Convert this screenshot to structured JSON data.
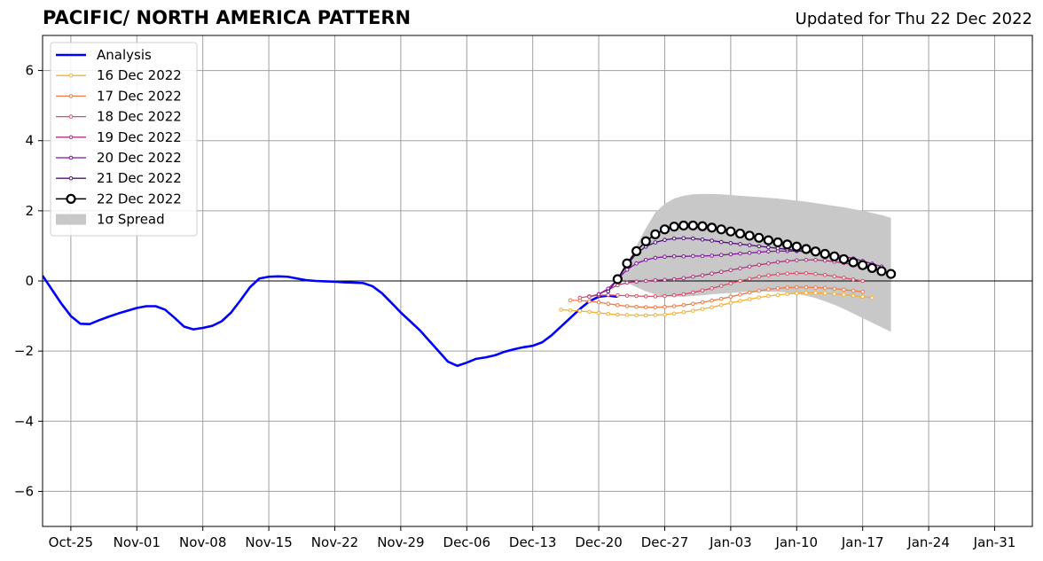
{
  "chart_data": {
    "type": "line",
    "title": "PACIFIC/ NORTH AMERICA PATTERN",
    "subtitle": "Updated for Thu 22 Dec 2022",
    "xlim": [
      "2022-10-22",
      "2023-02-04"
    ],
    "ylim": [
      -7,
      7
    ],
    "x_ticks": [
      {
        "date": "2022-10-25",
        "label": "Oct-25"
      },
      {
        "date": "2022-11-01",
        "label": "Nov-01"
      },
      {
        "date": "2022-11-08",
        "label": "Nov-08"
      },
      {
        "date": "2022-11-15",
        "label": "Nov-15"
      },
      {
        "date": "2022-11-22",
        "label": "Nov-22"
      },
      {
        "date": "2022-11-29",
        "label": "Nov-29"
      },
      {
        "date": "2022-12-06",
        "label": "Dec-06"
      },
      {
        "date": "2022-12-13",
        "label": "Dec-13"
      },
      {
        "date": "2022-12-20",
        "label": "Dec-20"
      },
      {
        "date": "2022-12-27",
        "label": "Dec-27"
      },
      {
        "date": "2023-01-03",
        "label": "Jan-03"
      },
      {
        "date": "2023-01-10",
        "label": "Jan-10"
      },
      {
        "date": "2023-01-17",
        "label": "Jan-17"
      },
      {
        "date": "2023-01-24",
        "label": "Jan-24"
      },
      {
        "date": "2023-01-31",
        "label": "Jan-31"
      }
    ],
    "y_ticks": [
      {
        "value": -6,
        "label": "−6"
      },
      {
        "value": -4,
        "label": "−4"
      },
      {
        "value": -2,
        "label": "−2"
      },
      {
        "value": 0,
        "label": "0"
      },
      {
        "value": 2,
        "label": "2"
      },
      {
        "value": 4,
        "label": "4"
      },
      {
        "value": 6,
        "label": "6"
      }
    ],
    "grid": true,
    "legend_position": "top-left",
    "analysis": {
      "name": "Analysis",
      "color": "#0000ff",
      "start": "2022-10-22",
      "values": [
        0.15,
        -0.25,
        -0.65,
        -1.0,
        -1.22,
        -1.23,
        -1.12,
        -1.02,
        -0.93,
        -0.85,
        -0.77,
        -0.72,
        -0.72,
        -0.82,
        -1.05,
        -1.3,
        -1.38,
        -1.34,
        -1.28,
        -1.15,
        -0.9,
        -0.55,
        -0.18,
        0.07,
        0.12,
        0.13,
        0.12,
        0.07,
        0.02,
        0.0,
        -0.01,
        -0.02,
        -0.04,
        -0.05,
        -0.06,
        -0.15,
        -0.35,
        -0.62,
        -0.9,
        -1.15,
        -1.4,
        -1.7,
        -2.0,
        -2.3,
        -2.42,
        -2.33,
        -2.22,
        -2.18,
        -2.12,
        -2.02,
        -1.95,
        -1.89,
        -1.85,
        -1.75,
        -1.55,
        -1.3,
        -1.05,
        -0.8,
        -0.58,
        -0.45,
        -0.42,
        -0.45
      ]
    },
    "forecasts": [
      {
        "name": "16 Dec 2022",
        "color": "#f5b031",
        "start": "2022-12-16",
        "values": [
          -0.82,
          -0.84,
          -0.86,
          -0.88,
          -0.91,
          -0.94,
          -0.96,
          -0.97,
          -0.98,
          -0.98,
          -0.97,
          -0.96,
          -0.93,
          -0.89,
          -0.85,
          -0.8,
          -0.75,
          -0.69,
          -0.63,
          -0.57,
          -0.52,
          -0.47,
          -0.43,
          -0.4,
          -0.37,
          -0.35,
          -0.34,
          -0.34,
          -0.35,
          -0.37,
          -0.39,
          -0.42,
          -0.45,
          -0.48
        ]
      },
      {
        "name": "17 Dec 2022",
        "color": "#ef7a45",
        "start": "2022-12-17",
        "values": [
          -0.55,
          -0.56,
          -0.58,
          -0.61,
          -0.65,
          -0.69,
          -0.72,
          -0.74,
          -0.75,
          -0.75,
          -0.74,
          -0.72,
          -0.69,
          -0.65,
          -0.61,
          -0.56,
          -0.51,
          -0.45,
          -0.39,
          -0.33,
          -0.28,
          -0.24,
          -0.21,
          -0.19,
          -0.18,
          -0.18,
          -0.19,
          -0.2,
          -0.22,
          -0.25,
          -0.28,
          -0.31
        ]
      },
      {
        "name": "18 Dec 2022",
        "color": "#d94e67",
        "start": "2022-12-18",
        "values": [
          -0.48,
          -0.44,
          -0.41,
          -0.4,
          -0.41,
          -0.42,
          -0.43,
          -0.44,
          -0.44,
          -0.43,
          -0.41,
          -0.38,
          -0.33,
          -0.27,
          -0.21,
          -0.14,
          -0.07,
          0.0,
          0.06,
          0.12,
          0.16,
          0.19,
          0.21,
          0.22,
          0.22,
          0.2,
          0.17,
          0.13,
          0.09,
          0.04,
          0.0
        ]
      },
      {
        "name": "19 Dec 2022",
        "color": "#b0327d",
        "start": "2022-12-19",
        "values": [
          -0.45,
          -0.38,
          -0.25,
          -0.12,
          -0.05,
          -0.02,
          0.0,
          0.02,
          0.03,
          0.05,
          0.08,
          0.12,
          0.16,
          0.21,
          0.26,
          0.31,
          0.36,
          0.41,
          0.46,
          0.5,
          0.54,
          0.57,
          0.59,
          0.6,
          0.6,
          0.58,
          0.55,
          0.51,
          0.46,
          0.4,
          0.33
        ]
      },
      {
        "name": "20 Dec 2022",
        "color": "#8515a0",
        "start": "2022-12-20",
        "values": [
          -0.38,
          -0.22,
          0.05,
          0.32,
          0.5,
          0.6,
          0.66,
          0.69,
          0.7,
          0.7,
          0.71,
          0.71,
          0.72,
          0.74,
          0.76,
          0.78,
          0.8,
          0.82,
          0.84,
          0.85,
          0.85,
          0.85,
          0.84,
          0.82,
          0.79,
          0.75,
          0.7,
          0.64,
          0.57,
          0.49,
          0.41
        ]
      },
      {
        "name": "21 Dec 2022",
        "color": "#4f0e7d",
        "start": "2022-12-21",
        "values": [
          -0.3,
          0.05,
          0.45,
          0.78,
          0.98,
          1.1,
          1.17,
          1.21,
          1.22,
          1.21,
          1.18,
          1.15,
          1.11,
          1.08,
          1.05,
          1.02,
          0.99,
          0.96,
          0.93,
          0.9,
          0.87,
          0.84,
          0.8
        ]
      }
    ],
    "latest": {
      "name": "22 Dec 2022",
      "color": "#000000",
      "start": "2022-12-22",
      "values": [
        0.05,
        0.5,
        0.85,
        1.13,
        1.33,
        1.47,
        1.55,
        1.58,
        1.58,
        1.56,
        1.52,
        1.47,
        1.41,
        1.35,
        1.29,
        1.23,
        1.16,
        1.1,
        1.04,
        0.98,
        0.91,
        0.84,
        0.77,
        0.7,
        0.62,
        0.53,
        0.45,
        0.37,
        0.28,
        0.2
      ]
    },
    "spread": {
      "name": "1σ Spread",
      "color": "#c8c8c8",
      "start": "2022-12-22",
      "upper": [
        0.05,
        0.5,
        1.0,
        1.5,
        1.95,
        2.2,
        2.35,
        2.43,
        2.47,
        2.48,
        2.48,
        2.47,
        2.45,
        2.43,
        2.41,
        2.39,
        2.37,
        2.35,
        2.32,
        2.29,
        2.26,
        2.22,
        2.18,
        2.14,
        2.1,
        2.05,
        2.0,
        1.94,
        1.88,
        1.8
      ],
      "lower": [
        0.05,
        -0.05,
        -0.18,
        -0.3,
        -0.38,
        -0.43,
        -0.45,
        -0.45,
        -0.43,
        -0.41,
        -0.38,
        -0.36,
        -0.34,
        -0.32,
        -0.31,
        -0.3,
        -0.3,
        -0.31,
        -0.33,
        -0.37,
        -0.42,
        -0.49,
        -0.58,
        -0.68,
        -0.8,
        -0.93,
        -1.06,
        -1.19,
        -1.32,
        -1.45
      ]
    },
    "zero_line": 0
  }
}
